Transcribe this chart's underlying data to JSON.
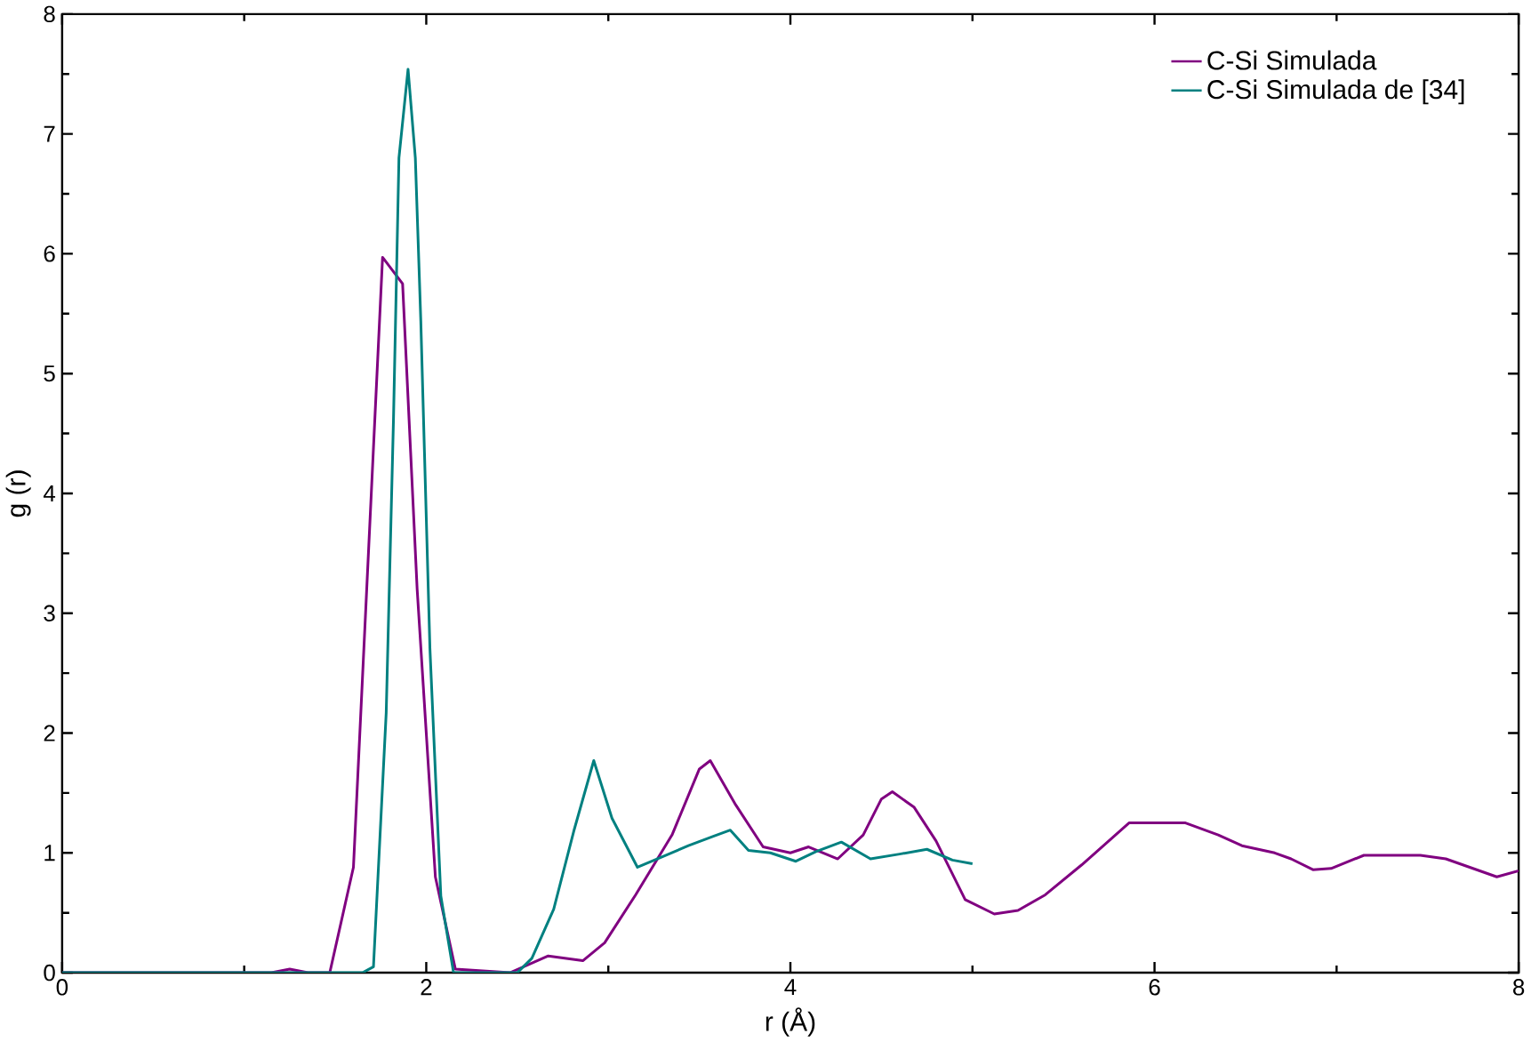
{
  "chart_data": {
    "type": "line",
    "xlabel": "r (Å)",
    "ylabel": "g (r)",
    "xlim": [
      0,
      8
    ],
    "ylim": [
      0,
      8
    ],
    "xticks": [
      0,
      2,
      4,
      6,
      8
    ],
    "yticks": [
      0,
      1,
      2,
      3,
      4,
      5,
      6,
      7,
      8
    ],
    "grid": false,
    "legend": "top right",
    "line_style": "solid",
    "marker": "none",
    "series": [
      {
        "name": "C-Si Simulada",
        "color": "#800080",
        "x": [
          0,
          1.15,
          1.25,
          1.35,
          1.47,
          1.6,
          1.76,
          1.87,
          1.95,
          2.05,
          2.16,
          2.46,
          2.67,
          2.86,
          2.98,
          3.15,
          3.35,
          3.5,
          3.56,
          3.7,
          3.85,
          4.0,
          4.1,
          4.26,
          4.4,
          4.5,
          4.56,
          4.68,
          4.8,
          4.96,
          5.12,
          5.25,
          5.4,
          5.6,
          5.86,
          6.17,
          6.35,
          6.48,
          6.66,
          6.75,
          6.87,
          6.97,
          7.15,
          7.46,
          7.6,
          7.88,
          8.0
        ],
        "values": [
          0,
          0,
          0.03,
          0,
          0,
          0.88,
          5.97,
          5.75,
          3.2,
          0.8,
          0.03,
          0,
          0.14,
          0.1,
          0.25,
          0.65,
          1.15,
          1.7,
          1.77,
          1.4,
          1.05,
          1.0,
          1.05,
          0.95,
          1.15,
          1.45,
          1.51,
          1.38,
          1.1,
          0.61,
          0.49,
          0.52,
          0.65,
          0.9,
          1.25,
          1.25,
          1.15,
          1.06,
          1.0,
          0.95,
          0.86,
          0.87,
          0.98,
          0.98,
          0.95,
          0.8,
          0.85
        ]
      },
      {
        "name": "C-Si Simulada de [34]",
        "color": "#008080",
        "x": [
          0,
          1.65,
          1.71,
          1.78,
          1.82,
          1.85,
          1.9,
          1.94,
          1.97,
          2.02,
          2.08,
          2.15,
          2.5,
          2.58,
          2.7,
          2.81,
          2.92,
          3.02,
          3.16,
          3.3,
          3.44,
          3.58,
          3.67,
          3.77,
          3.89,
          4.03,
          4.14,
          4.28,
          4.44,
          4.6,
          4.75,
          4.89,
          5.0
        ],
        "values": [
          0,
          0,
          0.05,
          2.17,
          4.62,
          6.8,
          7.54,
          6.8,
          5.44,
          2.71,
          0.64,
          0,
          0,
          0.12,
          0.53,
          1.18,
          1.77,
          1.29,
          0.88,
          0.97,
          1.06,
          1.14,
          1.19,
          1.02,
          1.0,
          0.93,
          1.01,
          1.09,
          0.95,
          0.99,
          1.03,
          0.94,
          0.91
        ]
      }
    ]
  }
}
